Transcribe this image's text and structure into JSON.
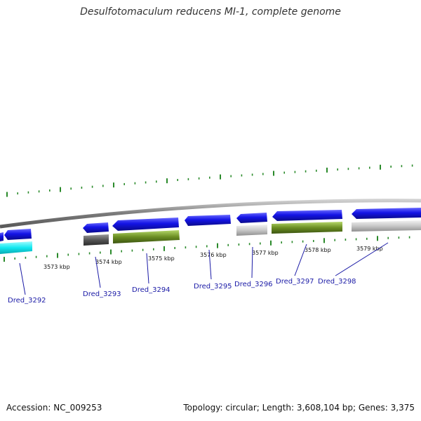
{
  "title": "Desulfotomaculum reducens MI-1, complete genome",
  "footer": {
    "accession": "Accession: NC_009253",
    "summary": "Topology: circular; Length: 3,608,104 bp; Genes: 3,375"
  },
  "ticks": [
    {
      "label": "3573 kbp"
    },
    {
      "label": "3574 kbp"
    },
    {
      "label": "3575 kbp"
    },
    {
      "label": "3576 kbp"
    },
    {
      "label": "3577 kbp"
    },
    {
      "label": "3578 kbp"
    },
    {
      "label": "3579 kbp"
    }
  ],
  "genes": [
    {
      "name": "Dred_3292"
    },
    {
      "name": "Dred_3293"
    },
    {
      "name": "Dred_3294"
    },
    {
      "name": "Dred_3295"
    },
    {
      "name": "Dred_3296"
    },
    {
      "name": "Dred_3297"
    },
    {
      "name": "Dred_3298"
    }
  ],
  "colors": {
    "cds": "#1414e6",
    "cyan": "#12e8f0",
    "dark_gray": "#555555",
    "olive": "#6b8e23",
    "light_gray": "#c8c8c8",
    "backbone": "#8a8a8a",
    "tick": "#2a8a2a",
    "label": "#1a1aa6"
  }
}
